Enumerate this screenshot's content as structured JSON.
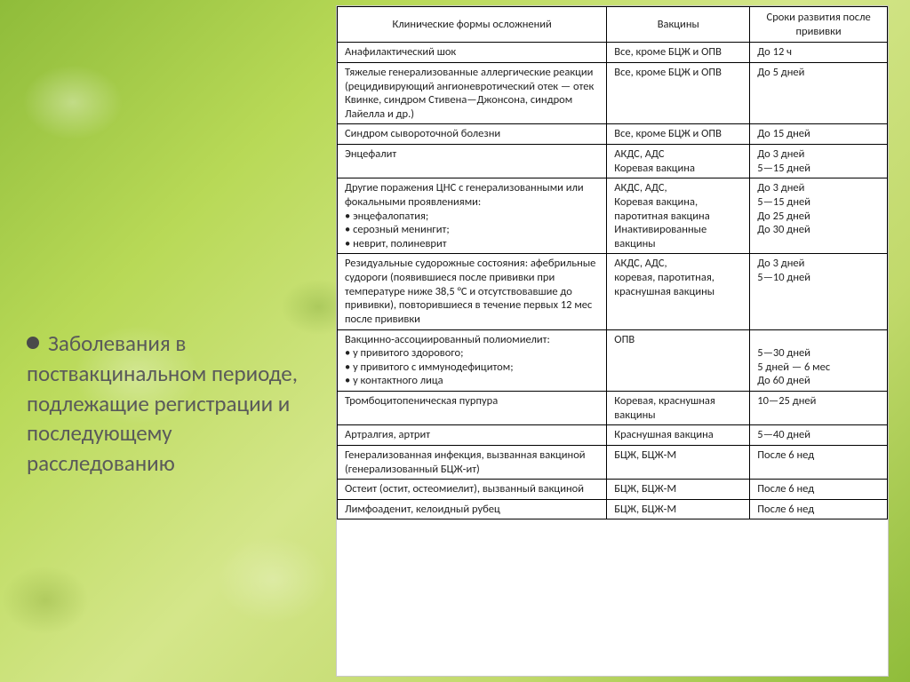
{
  "slide": {
    "title_text": "Заболевания в поствакцинальном периоде, подлежащие регистрации и последующему расследованию"
  },
  "table": {
    "columns": [
      "Клинические формы осложнений",
      "Вакцины",
      "Сроки развития после прививки"
    ],
    "rows": [
      {
        "c1": "Анафилактический шок",
        "c2": "Все, кроме БЦЖ и ОПВ",
        "c3": "До 12 ч"
      },
      {
        "c1": "Тяжелые генерализованные аллергические реакции (рецидивирующий ангионевротический отек — отек Квинке, синдром Стивена—Джонсона, синдром Лайелла и др.)",
        "c2": "Все, кроме БЦЖ и ОПВ",
        "c3": "До 5 дней"
      },
      {
        "c1": "Синдром сывороточной болезни",
        "c2": "Все, кроме БЦЖ и ОПВ",
        "c3": "До 15 дней"
      },
      {
        "c1": "Энцефалит",
        "c2": "АКДС, АДС\nКоревая вакцина",
        "c3": "До 3 дней\n5—15 дней"
      },
      {
        "c1_intro": "Другие поражения ЦНС с генерализованными или фокальными проявлениями:",
        "c1_items": [
          "энцефалопатия;",
          "серозный менингит;",
          "неврит, полиневрит"
        ],
        "c2": "АКДС, АДС,\nКоревая вакцина,\nпаротитная вакцина\nИнактивированные вакцины",
        "c3": "До 3 дней\n5—15 дней\nДо 25 дней\nДо 30 дней"
      },
      {
        "c1": "Резидуальные судорожные состояния: афебрильные судороги (появившиеся после прививки при температуре ниже 38,5 °С и отсутствовавшие до прививки), повторившиеся в течение первых 12 мес после прививки",
        "c2": "АКДС, АДС,\nкоревая, паротитная,\nкраснушная вакцины",
        "c3": "До 3 дней\n5—10 дней"
      },
      {
        "c1_intro": "Вакцинно-ассоциированный полиомиелит:",
        "c1_items": [
          "у привитого здорового;",
          "у привитого с иммунодефицитом;",
          "у контактного лица"
        ],
        "c2": "ОПВ",
        "c3": "\n5—30 дней\n5 дней — 6 мес\nДо 60 дней"
      },
      {
        "c1": "Тромбоцитопеническая пурпура",
        "c2": "Коревая, краснушная вакцины",
        "c3": "10—25 дней"
      },
      {
        "c1": "Артралгия, артрит",
        "c2": "Краснушная вакцина",
        "c3": "5—40 дней"
      },
      {
        "c1": "Генерализованная инфекция, вызванная вакциной (генерализованный БЦЖ-ит)",
        "c2": "БЦЖ, БЦЖ-М",
        "c3": "После 6 нед"
      },
      {
        "c1": "Остеит (остит, остеомиелит), вызванный вакциной",
        "c2": "БЦЖ, БЦЖ-М",
        "c3": "После 6 нед"
      },
      {
        "c1": "Лимфоаденит, келоидный рубец",
        "c2": "БЦЖ, БЦЖ-М",
        "c3": "После 6 нед"
      }
    ]
  },
  "style": {
    "text_color": "#222222",
    "title_color": "#5a5a5a",
    "border_color": "#000000",
    "table_bg": "#ffffff",
    "font_size_table": 12.5,
    "font_size_title": 25
  }
}
